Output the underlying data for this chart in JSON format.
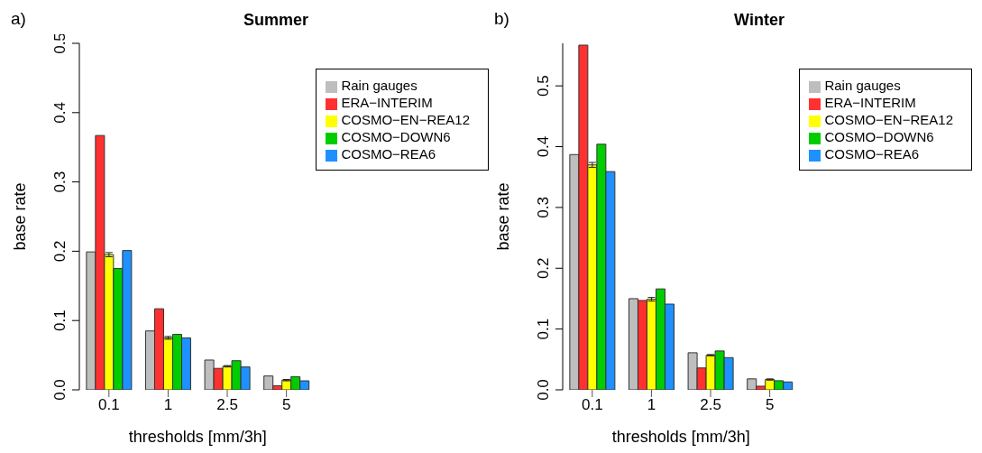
{
  "chart_data": [
    {
      "type": "bar",
      "title": "Summer",
      "annotations": [
        "a)"
      ],
      "xlabel": "thresholds [mm/3h]",
      "ylabel": "base rate",
      "categories": [
        "0.1",
        "1",
        "2.5",
        "5"
      ],
      "ylim": [
        0,
        0.5
      ],
      "yticks": [
        {
          "value": 0,
          "label": "0.0"
        },
        0.1,
        0.2,
        0.3,
        0.4,
        0.5
      ],
      "legend": "top right",
      "series": [
        {
          "name": "Rain gauges",
          "color": "#bebebe",
          "values": [
            0.199,
            0.085,
            0.043,
            0.02
          ]
        },
        {
          "name": "ERA−INTERIM",
          "color": "#ff3030",
          "values": [
            0.367,
            0.117,
            0.031,
            0.006
          ]
        },
        {
          "name": "COSMO−EN−REA12",
          "color": "#ffff00",
          "values": [
            0.195,
            0.075,
            0.034,
            0.014
          ],
          "errors": [
            0.003,
            0.002,
            0.001,
            0.001
          ]
        },
        {
          "name": "COSMO−DOWN6",
          "color": "#00cd00",
          "values": [
            0.175,
            0.08,
            0.042,
            0.019
          ]
        },
        {
          "name": "COSMO−REA6",
          "color": "#1e90ff",
          "values": [
            0.201,
            0.075,
            0.033,
            0.013
          ]
        }
      ]
    },
    {
      "type": "bar",
      "title": "Winter",
      "annotations": [
        "b)"
      ],
      "xlabel": "thresholds [mm/3h]",
      "ylabel": "base rate",
      "categories": [
        "0.1",
        "1",
        "2.5",
        "5"
      ],
      "ylim": [
        0,
        0.57
      ],
      "yticks": [
        {
          "value": 0,
          "label": "0.0"
        },
        0.1,
        0.2,
        0.3,
        0.4,
        0.5
      ],
      "legend": "top right",
      "series": [
        {
          "name": "Rain gauges",
          "color": "#bebebe",
          "values": [
            0.387,
            0.15,
            0.061,
            0.018
          ]
        },
        {
          "name": "ERA−INTERIM",
          "color": "#ff3030",
          "values": [
            0.567,
            0.147,
            0.036,
            0.006
          ]
        },
        {
          "name": "COSMO−EN−REA12",
          "color": "#ffff00",
          "values": [
            0.37,
            0.149,
            0.057,
            0.017
          ],
          "errors": [
            0.004,
            0.003,
            0.001,
            0.001
          ]
        },
        {
          "name": "COSMO−DOWN6",
          "color": "#00cd00",
          "values": [
            0.404,
            0.166,
            0.064,
            0.015
          ]
        },
        {
          "name": "COSMO−REA6",
          "color": "#1e90ff",
          "values": [
            0.359,
            0.141,
            0.053,
            0.013
          ]
        }
      ]
    }
  ]
}
